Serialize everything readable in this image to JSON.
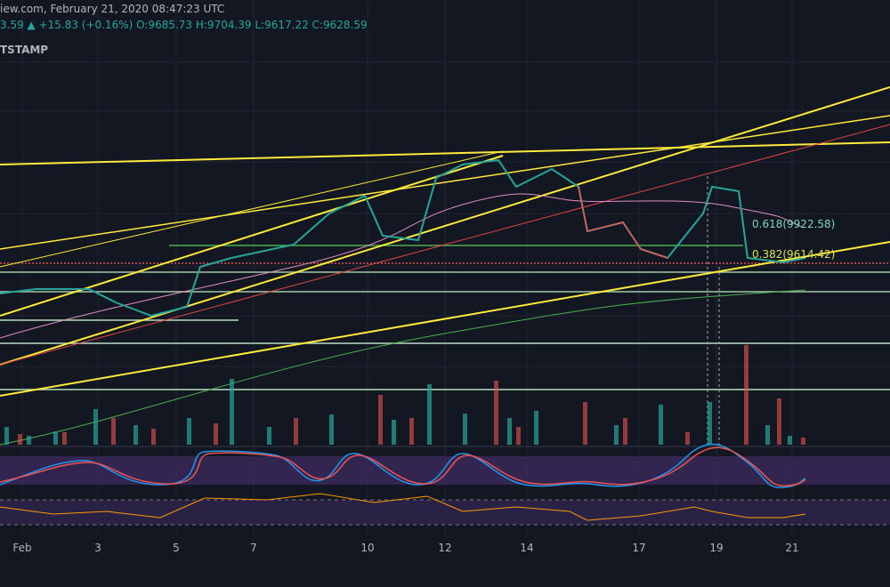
{
  "header": {
    "source": "iew.com, February 21, 2020 08:47:23 UTC",
    "quote": "3.59 ▲ +15.83 (+0.16%) O:9685.73 H:9704.39 L:9617.22 C:9628.59",
    "exchange": "TSTAMP"
  },
  "fib_levels": [
    "0.618(9922.58)",
    "0.382(9614.42)"
  ],
  "x_axis": [
    "Feb",
    "3",
    "5",
    "7",
    "10",
    "12",
    "14",
    "17",
    "19",
    "21"
  ]
}
